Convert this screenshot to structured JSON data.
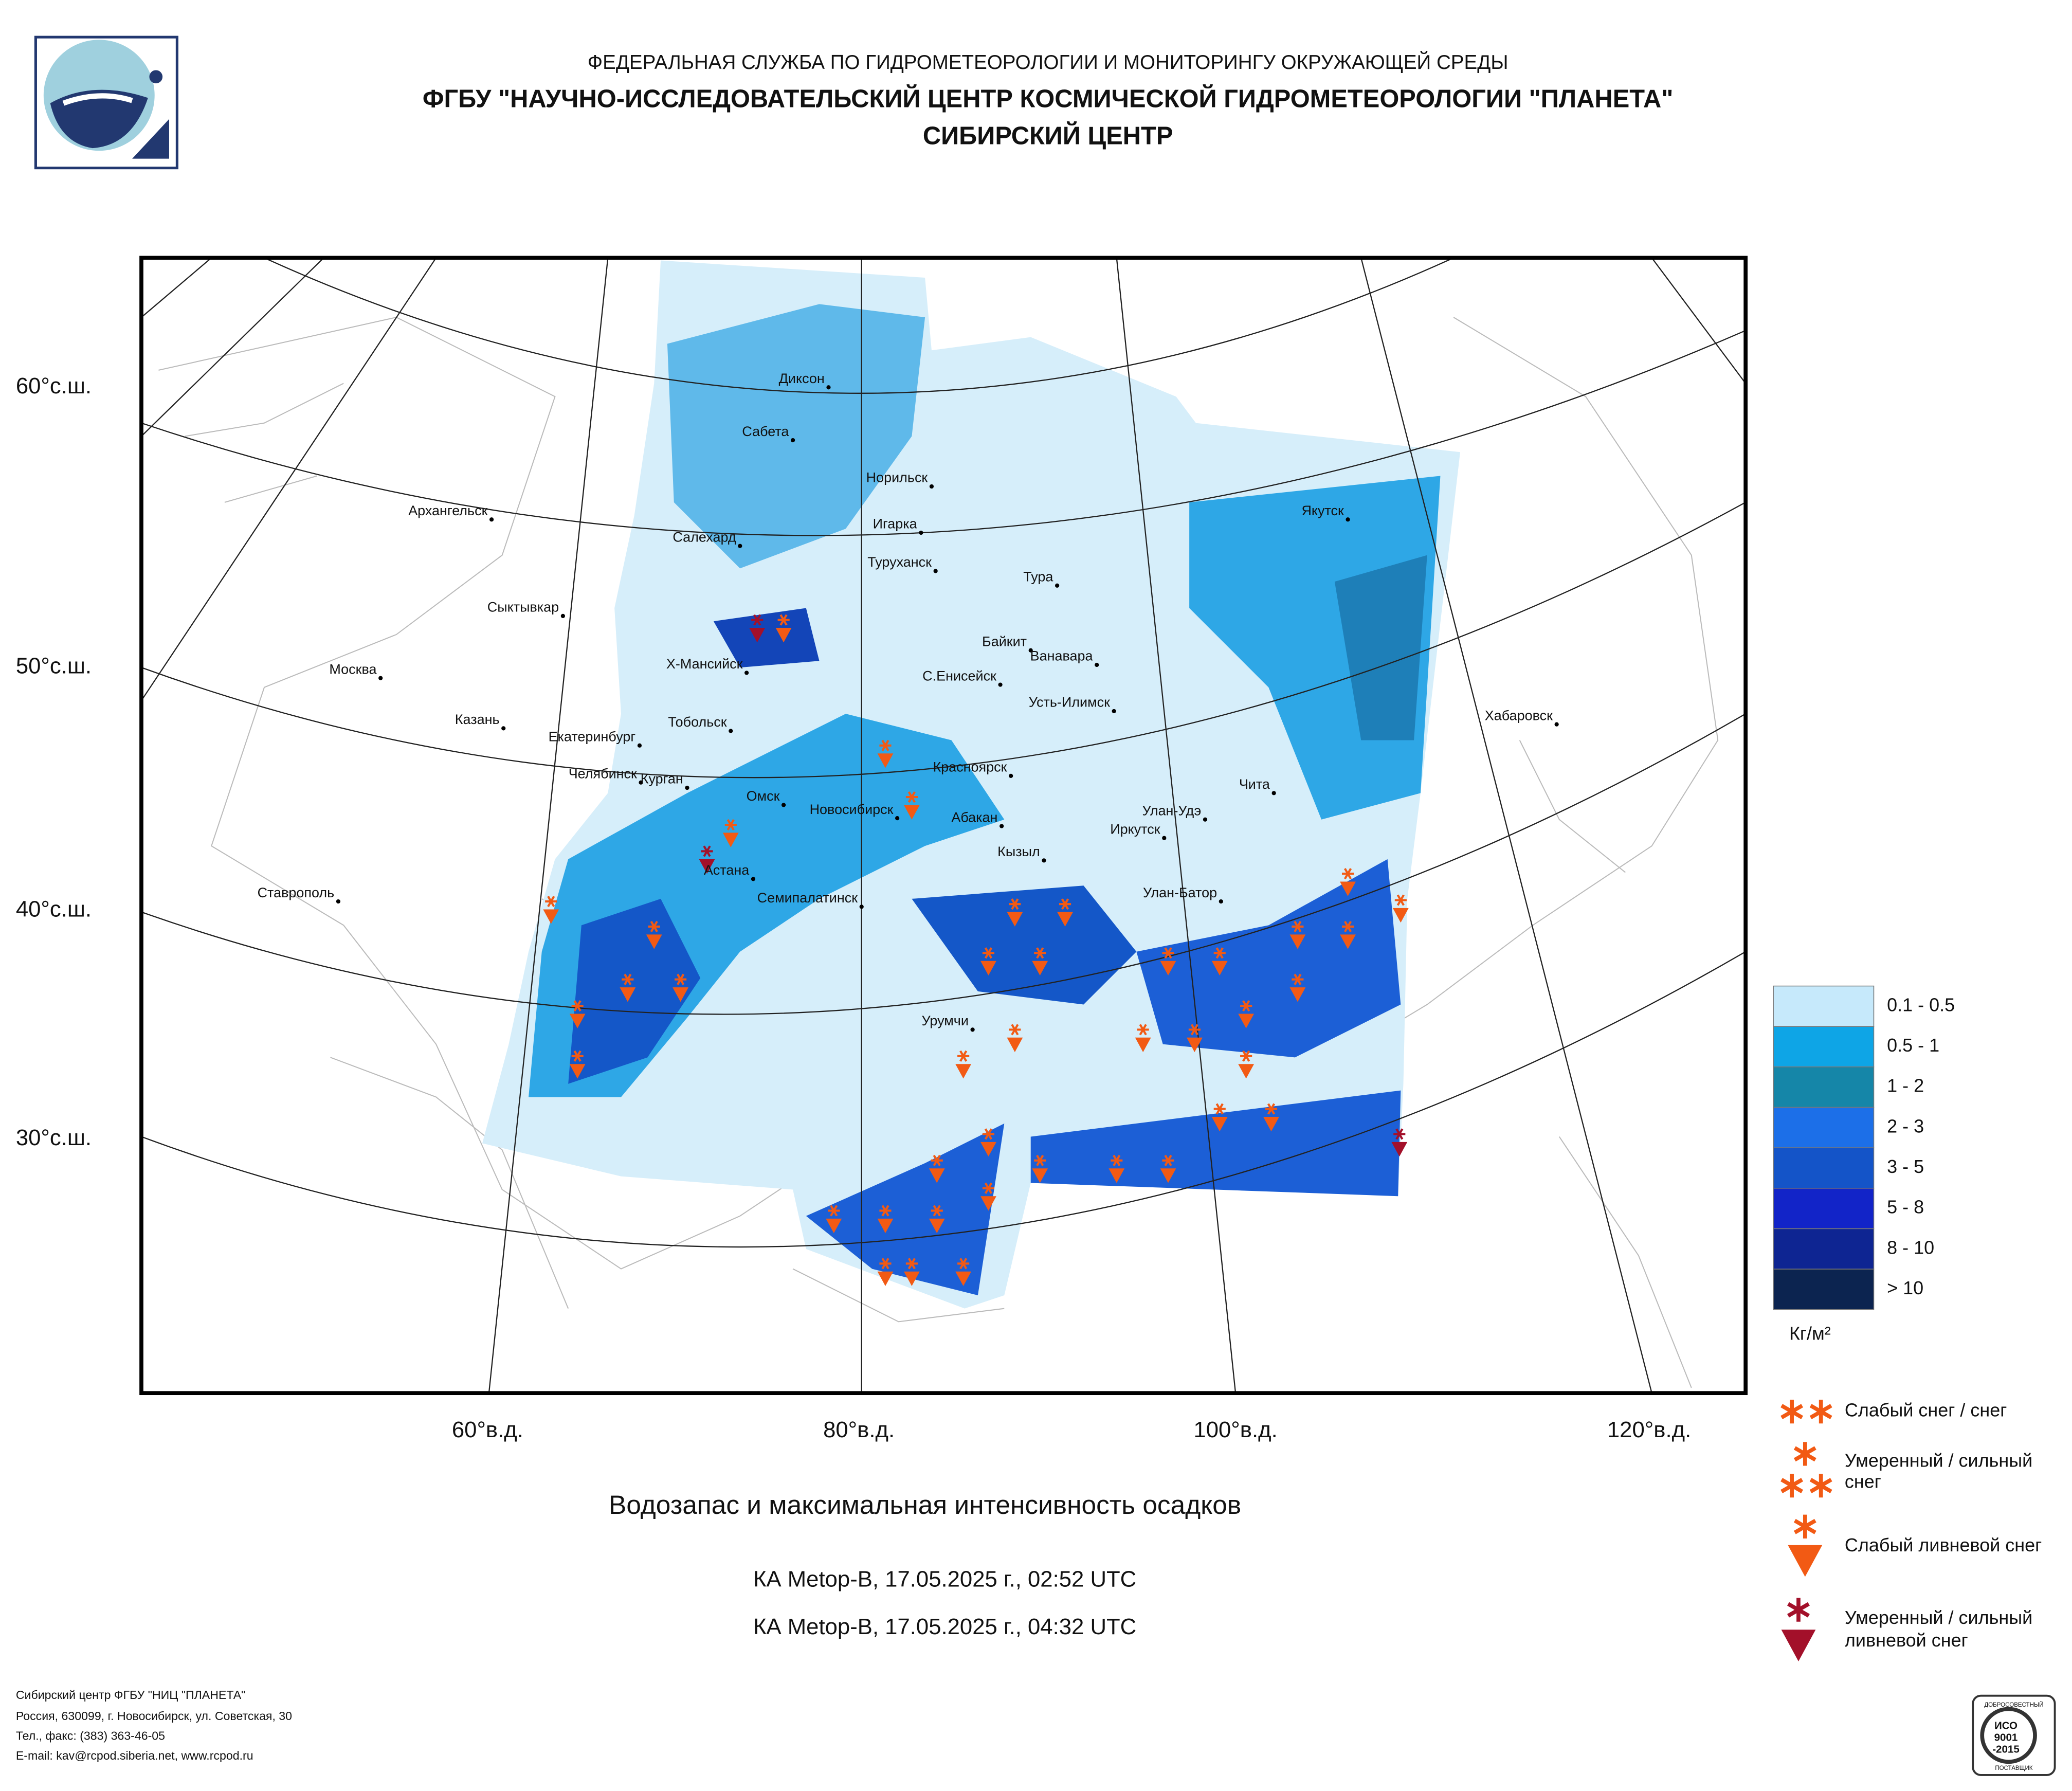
{
  "header": {
    "agency": "ФЕДЕРАЛЬНАЯ СЛУЖБА ПО ГИДРОМЕТЕОРОЛОГИИ И МОНИТОРИНГУ ОКРУЖАЮЩЕЙ СРЕДЫ",
    "center": "ФГБУ \"НАУЧНО-ИССЛЕДОВАТЕЛЬСКИЙ ЦЕНТР КОСМИЧЕСКОЙ ГИДРОМЕТЕОРОЛОГИИ \"ПЛАНЕТА\"",
    "branch": "СИБИРСКИЙ ЦЕНТР"
  },
  "map": {
    "latitude_labels": [
      "60°с.ш.",
      "50°с.ш.",
      "40°с.ш.",
      "30°с.ш."
    ],
    "longitude_labels": [
      "60°в.д.",
      "80°в.д.",
      "100°в.д.",
      "120°в.д."
    ],
    "cities": [
      "Диксон",
      "Сабета",
      "Норильск",
      "Игарка",
      "Салехард",
      "Туруханск",
      "Тура",
      "Архангельск",
      "Якутск",
      "Сыктывкар",
      "Байкит",
      "Ванавара",
      "Х-Мансийск",
      "С.Енисейск",
      "Москва",
      "Усть-Илимск",
      "Казань",
      "Тобольск",
      "Хабаровск",
      "Екатеринбург",
      "Красноярск",
      "Челябинск",
      "Чита",
      "Курган",
      "Омск",
      "Новосибирск",
      "Абакан",
      "Улан-Удэ",
      "Иркутск",
      "Кызыл",
      "Астана",
      "Ставрополь",
      "Улан-Батор",
      "Семипалатинск",
      "Урумчи"
    ]
  },
  "legend": {
    "classes": [
      {
        "label": "0.1 - 0.5",
        "color": "#c6e9fb"
      },
      {
        "label": "0.5 - 1",
        "color": "#0ea5e6"
      },
      {
        "label": "1 - 2",
        "color": "#1586a8"
      },
      {
        "label": "2 - 3",
        "color": "#1c6fe8"
      },
      {
        "label": "3 - 5",
        "color": "#1454c8"
      },
      {
        "label": "5 - 8",
        "color": "#1224c8"
      },
      {
        "label": "8 - 10",
        "color": "#0e2592"
      },
      {
        "label": "> 10",
        "color": "#0c2450"
      }
    ],
    "unit": "Кг/м²",
    "symbols": [
      {
        "lines": [
          "Слабый снег / снег"
        ]
      },
      {
        "lines": [
          "Умеренный / сильный",
          "снег"
        ]
      },
      {
        "lines": [
          "Слабый ливневой снег"
        ]
      },
      {
        "lines": [
          "Умеренный / сильный",
          "ливневой снег"
        ]
      }
    ]
  },
  "caption": {
    "title": "Водозапас и максимальная интенсивность осадков",
    "passes": [
      "КА Metop-B, 17.05.2025 г., 02:52 UTC",
      "КА Metop-B, 17.05.2025 г., 04:32 UTC"
    ]
  },
  "footer": {
    "lines": [
      "Сибирский центр ФГБУ \"НИЦ \"ПЛАНЕТА\"",
      "Россия, 630099, г. Новосибирск, ул. Советская, 30",
      "Тел., факс: (383) 363-46-05",
      "E-mail: kav@rcpod.siberia.net, www.rcpod.ru"
    ],
    "certificate": [
      "ДОБРОСОВЕСТНЫЙ",
      "ИСО",
      "9001",
      "-2015",
      "ПОСТАВЩИК"
    ]
  }
}
